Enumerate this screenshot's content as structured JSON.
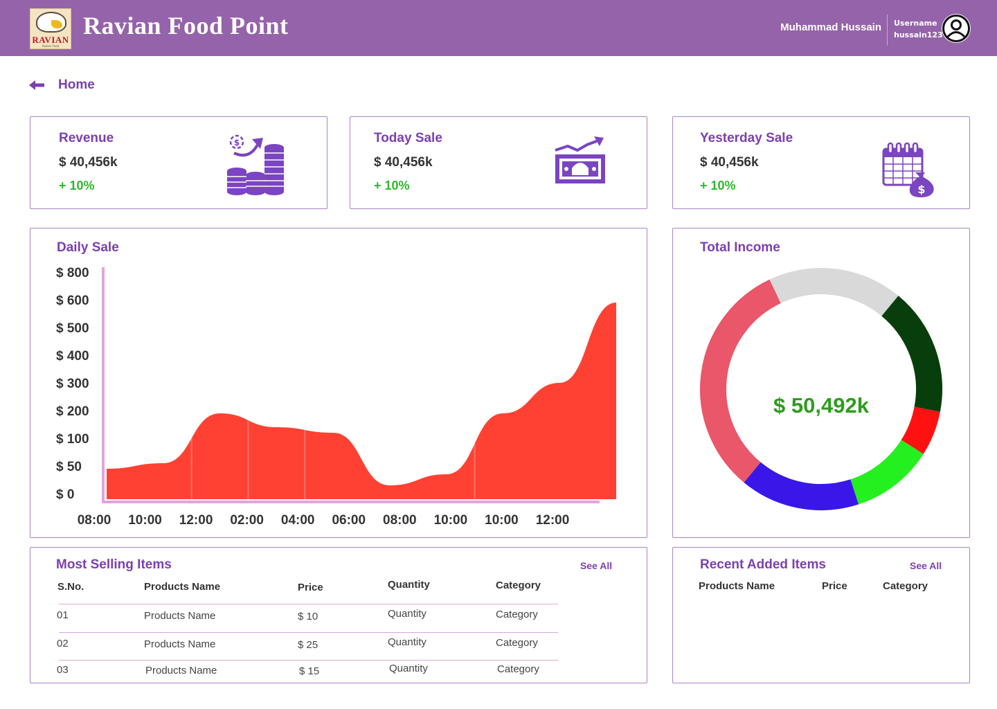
{
  "header": {
    "title": "Ravian Food Point",
    "logo_text": "RAVIAN",
    "logo_sub": "Ravian Food",
    "user_name": "Muhammad Hussain",
    "username_label": "Username",
    "username": "hussain123"
  },
  "nav": {
    "back_label": "Home"
  },
  "stats": [
    {
      "title": "Revenue",
      "value": "$ 40,456k",
      "change": "+ 10%",
      "icon": "coins-growth-icon"
    },
    {
      "title": "Today Sale",
      "value": "$ 40,456k",
      "change": "+ 10%",
      "icon": "cash-trend-icon"
    },
    {
      "title": "Yesterday Sale",
      "value": "$ 40,456k",
      "change": "+ 10%",
      "icon": "calendar-money-icon"
    }
  ],
  "daily_sale": {
    "title": "Daily Sale"
  },
  "chart_data": [
    {
      "type": "area",
      "title": "Daily Sale",
      "y_ticks": [
        "$ 800",
        "$ 600",
        "$ 500",
        "$ 400",
        "$ 300",
        "$ 200",
        "$ 100",
        "$ 50",
        "$ 0"
      ],
      "x": [
        "08:00",
        "10:00",
        "12:00",
        "02:00",
        "04:00",
        "06:00",
        "08:00",
        "10:00",
        "10:00",
        "12:00"
      ],
      "values": [
        50,
        60,
        200,
        150,
        130,
        20,
        40,
        200,
        310,
        600
      ],
      "color": "#ff4133",
      "grid": false
    },
    {
      "type": "pie",
      "title": "Total Income",
      "center_label": "$ 50,492k",
      "slices": [
        {
          "value": 18,
          "color": "#d9d9d9"
        },
        {
          "value": 17,
          "color": "#073e0b"
        },
        {
          "value": 6,
          "color": "#ff1111"
        },
        {
          "value": 11,
          "color": "#25f01f"
        },
        {
          "value": 16,
          "color": "#3a17e8"
        },
        {
          "value": 32,
          "color": "#ea566a"
        }
      ]
    }
  ],
  "total_income": {
    "title": "Total Income",
    "value": "$ 50,492k"
  },
  "most_selling": {
    "title": "Most Selling Items",
    "see_all": "See All",
    "headers": [
      "S.No.",
      "Products Name",
      "Price",
      "Quantity",
      "Category"
    ],
    "rows": [
      [
        "01",
        "Products Name",
        "$ 10",
        "Quantity",
        "Category"
      ],
      [
        "02",
        "Products Name",
        "$ 25",
        "Quantity",
        "Category"
      ],
      [
        "03",
        "Products Name",
        "$ 15",
        "Quantity",
        "Category"
      ]
    ]
  },
  "recent_added": {
    "title": "Recent Added Items",
    "see_all": "See All",
    "headers": [
      "Products Name",
      "Price",
      "Category"
    ]
  },
  "colors": {
    "header_bg": "#9563a9",
    "accent": "#7b3fb0",
    "positive": "#2db82d",
    "card_border": "#a784c4"
  }
}
